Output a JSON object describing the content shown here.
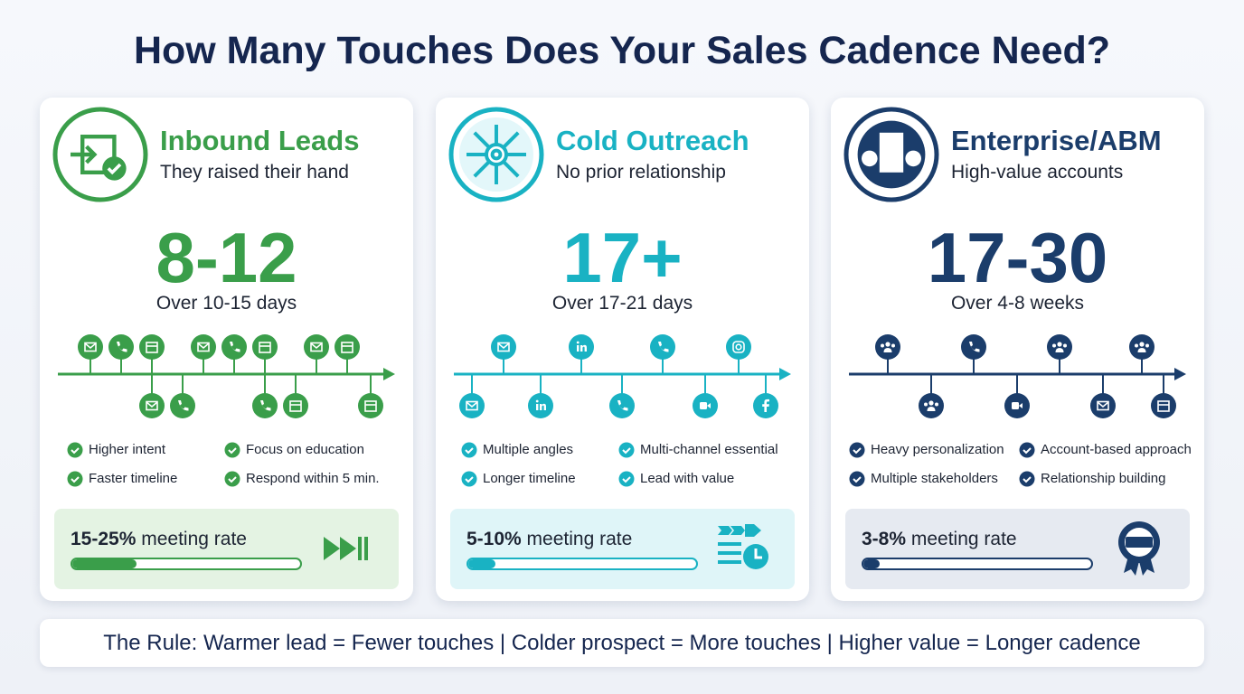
{
  "title": "How Many Touches Does Your Sales Cadence Need?",
  "cards": [
    {
      "name": "Inbound Leads",
      "subtitle": "They raised their hand",
      "touches": "8-12",
      "duration": "Over 10-15 days",
      "points": [
        "Higher intent",
        "Focus on education",
        "Faster timeline",
        "Respond within 5 min."
      ],
      "meeting_rate": "15-25%",
      "meeting_label": "meeting rate"
    },
    {
      "name": "Cold Outreach",
      "subtitle": "No prior relationship",
      "touches": "17+",
      "duration": "Over 17-21 days",
      "points": [
        "Multiple angles",
        "Multi-channel essential",
        "Longer timeline",
        "Lead with value"
      ],
      "meeting_rate": "5-10%",
      "meeting_label": "meeting rate"
    },
    {
      "name": "Enterprise/ABM",
      "subtitle": "High-value accounts",
      "touches": "17-30",
      "duration": "Over 4-8 weeks",
      "points": [
        "Heavy personalization",
        "Account-based approach",
        "Multiple stakeholders",
        "Relationship building"
      ],
      "meeting_rate": "3-8%",
      "meeting_label": "meeting rate"
    }
  ],
  "footer": "The Rule: Warmer lead = Fewer touches | Colder prospect = More touches | Higher value = Longer cadence"
}
